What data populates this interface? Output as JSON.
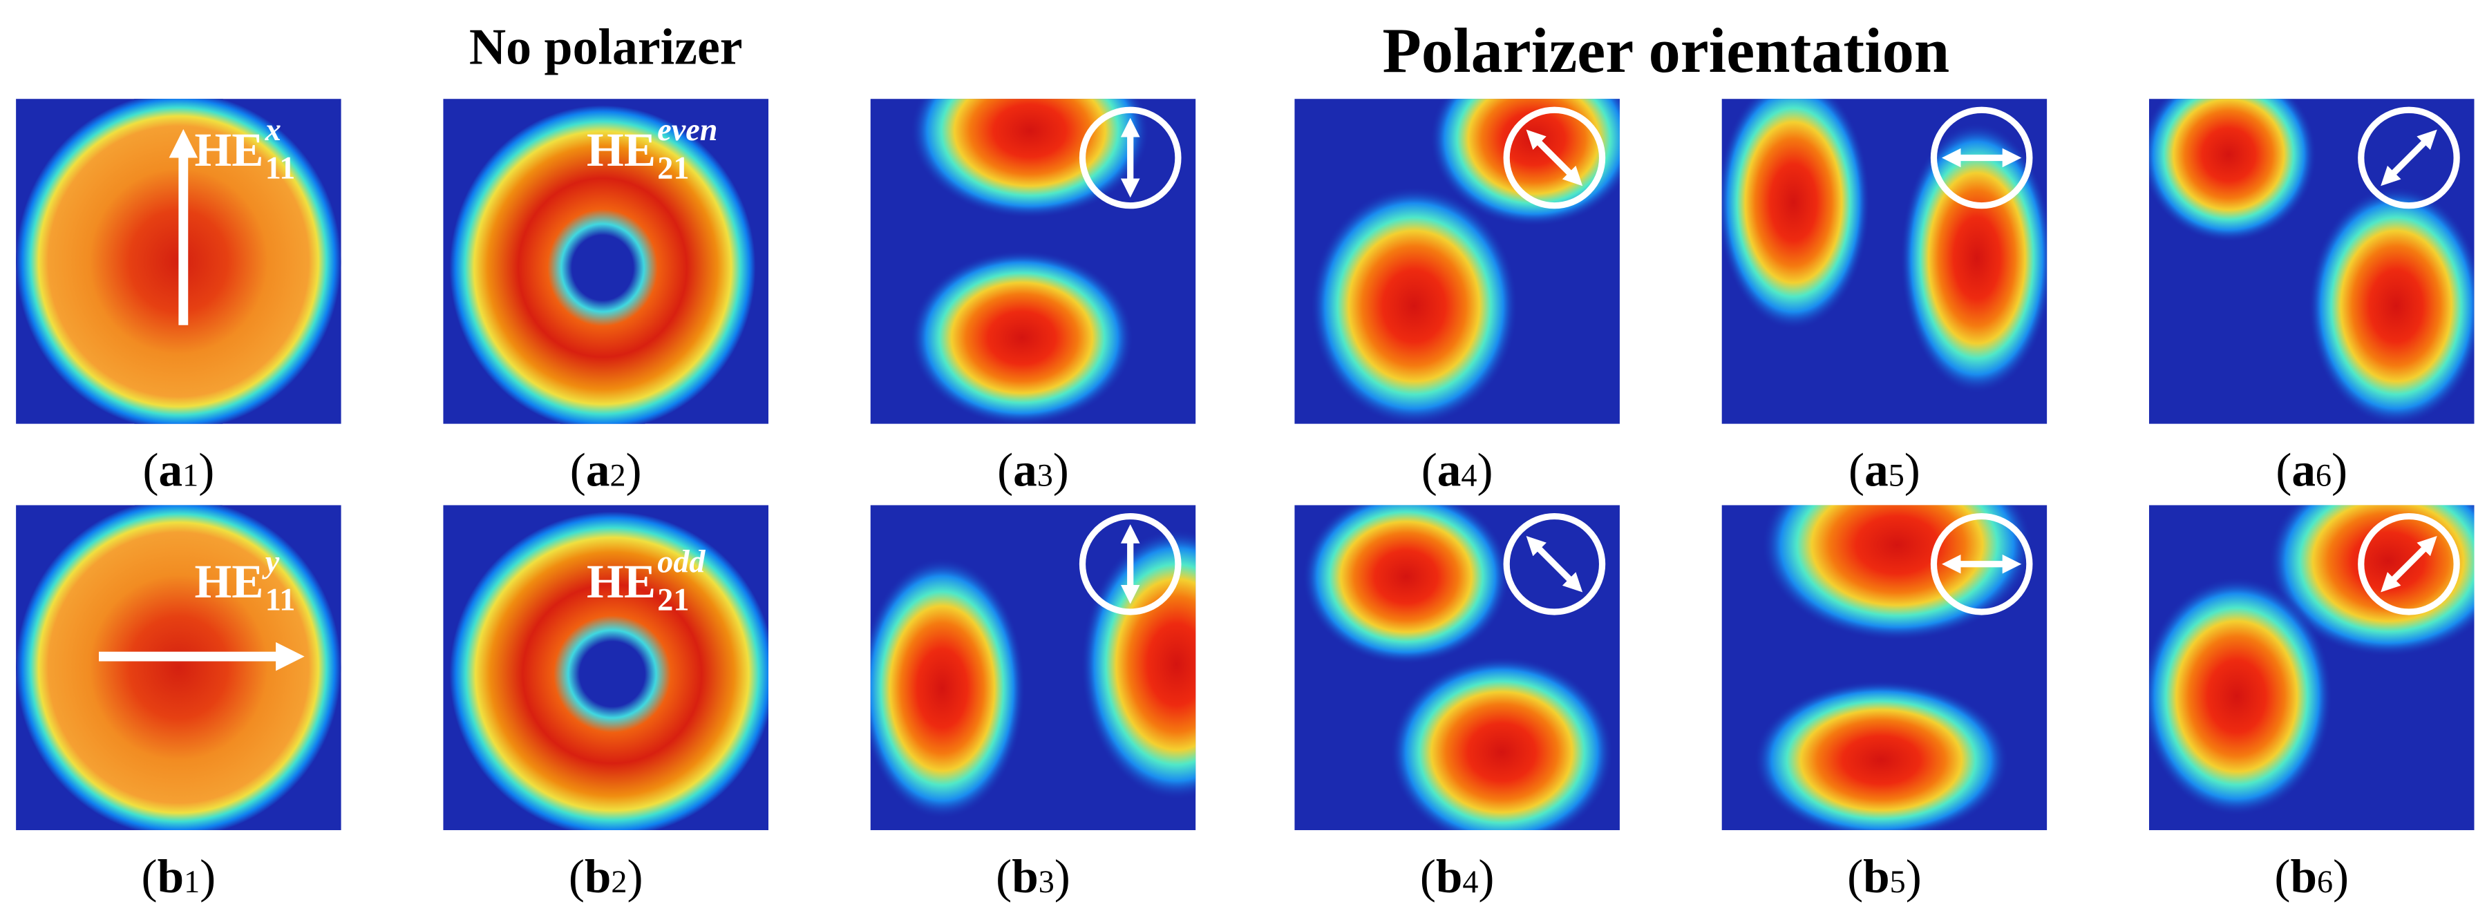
{
  "title_left": "No polarizer",
  "title_right": "Polarizer orientation",
  "panels": [
    {
      "label": [
        "(",
        "a",
        "1",
        ")"
      ],
      "mode": {
        "base": "HE",
        "sub": "11",
        "sup": "x"
      }
    },
    {
      "label": [
        "(",
        "a",
        "2",
        ")"
      ],
      "mode": {
        "base": "HE",
        "sub": "21",
        "sup": "even"
      }
    },
    {
      "label": [
        "(",
        "a",
        "3",
        ")"
      ]
    },
    {
      "label": [
        "(",
        "a",
        "4",
        ")"
      ]
    },
    {
      "label": [
        "(",
        "a",
        "5",
        ")"
      ]
    },
    {
      "label": [
        "(",
        "a",
        "6",
        ")"
      ]
    },
    {
      "label": [
        "(",
        "b",
        "1",
        ")"
      ],
      "mode": {
        "base": "HE",
        "sub": "11",
        "sup": "y"
      }
    },
    {
      "label": [
        "(",
        "b",
        "2",
        ")"
      ],
      "mode": {
        "base": "HE",
        "sub": "21",
        "sup": "odd"
      }
    },
    {
      "label": [
        "(",
        "b",
        "3",
        ")"
      ]
    },
    {
      "label": [
        "(",
        "b",
        "4",
        ")"
      ]
    },
    {
      "label": [
        "(",
        "b",
        "5",
        ")"
      ]
    },
    {
      "label": [
        "(",
        "b",
        "6",
        ")"
      ]
    }
  ]
}
